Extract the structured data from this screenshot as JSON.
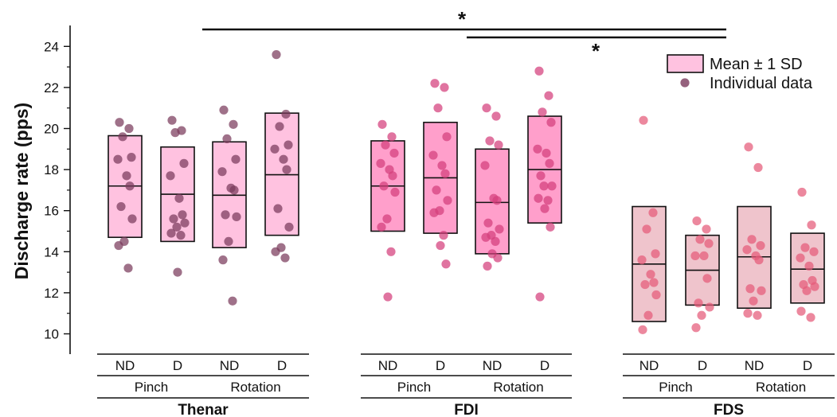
{
  "chart_data": {
    "type": "box",
    "ylabel": "Discharge rate (pps)",
    "ylim": [
      9.2,
      25.2
    ],
    "yticks": [
      10,
      12,
      14,
      16,
      18,
      20,
      22,
      24
    ],
    "legend": {
      "placement": "top-right",
      "items": [
        {
          "label": "Mean ± 1 SD",
          "kind": "box"
        },
        {
          "label": "Individual data",
          "kind": "point"
        }
      ]
    },
    "colors": {
      "Thenar": {
        "box": "#ffc2e0",
        "dot": "#7a3a5c"
      },
      "FDI": {
        "box": "#ff9fcb",
        "dot": "#d43f7c"
      },
      "FDS": {
        "box": "#efc4cc",
        "dot": "#e45a78"
      }
    },
    "muscles": [
      {
        "name": "Thenar",
        "tasks": [
          "Pinch",
          "Rotation"
        ],
        "conditions": [
          {
            "hand": "ND",
            "task": "Pinch",
            "mean": 17.2,
            "sd_low": 14.7,
            "sd_high": 19.65,
            "points": [
              20.3,
              20.0,
              19.6,
              18.6,
              18.5,
              17.7,
              17.2,
              16.2,
              15.6,
              14.5,
              14.3,
              13.2
            ]
          },
          {
            "hand": "D",
            "task": "Pinch",
            "mean": 16.8,
            "sd_low": 14.5,
            "sd_high": 19.1,
            "points": [
              20.4,
              19.9,
              19.8,
              18.3,
              17.7,
              16.6,
              15.8,
              15.6,
              15.4,
              15.2,
              14.9,
              14.8,
              13.0
            ]
          },
          {
            "hand": "ND",
            "task": "Rotation",
            "mean": 16.75,
            "sd_low": 14.2,
            "sd_high": 19.35,
            "points": [
              20.9,
              20.2,
              19.5,
              18.5,
              17.9,
              17.1,
              17.0,
              15.8,
              15.7,
              14.5,
              13.6,
              11.6
            ]
          },
          {
            "hand": "D",
            "task": "Rotation",
            "mean": 17.75,
            "sd_low": 14.8,
            "sd_high": 20.75,
            "points": [
              23.6,
              20.7,
              20.1,
              19.2,
              19.0,
              18.5,
              18.0,
              16.1,
              15.2,
              14.2,
              14.0,
              13.7
            ]
          }
        ]
      },
      {
        "name": "FDI",
        "tasks": [
          "Pinch",
          "Rotation"
        ],
        "conditions": [
          {
            "hand": "ND",
            "task": "Pinch",
            "mean": 17.2,
            "sd_low": 15.0,
            "sd_high": 19.4,
            "points": [
              20.2,
              19.6,
              19.2,
              18.8,
              18.3,
              18.0,
              17.7,
              17.2,
              16.9,
              15.6,
              15.2,
              14.0,
              11.8
            ]
          },
          {
            "hand": "D",
            "task": "Pinch",
            "mean": 17.6,
            "sd_low": 14.9,
            "sd_high": 20.3,
            "points": [
              22.2,
              22.0,
              21.0,
              19.6,
              18.7,
              18.2,
              17.8,
              17.0,
              16.5,
              16.0,
              15.9,
              14.8,
              14.3,
              13.4
            ]
          },
          {
            "hand": "ND",
            "task": "Rotation",
            "mean": 16.4,
            "sd_low": 13.9,
            "sd_high": 19.0,
            "points": [
              21.0,
              20.6,
              19.4,
              19.2,
              18.2,
              16.6,
              16.5,
              15.4,
              15.1,
              14.8,
              14.7,
              14.5,
              13.9,
              13.7,
              13.3
            ]
          },
          {
            "hand": "D",
            "task": "Rotation",
            "mean": 18.0,
            "sd_low": 15.4,
            "sd_high": 20.6,
            "points": [
              22.8,
              21.6,
              20.8,
              20.3,
              19.0,
              18.8,
              18.3,
              17.7,
              17.2,
              17.2,
              16.6,
              16.5,
              16.1,
              15.2,
              11.8
            ]
          }
        ]
      },
      {
        "name": "FDS",
        "tasks": [
          "Pinch",
          "Rotation"
        ],
        "conditions": [
          {
            "hand": "ND",
            "task": "Pinch",
            "mean": 13.4,
            "sd_low": 10.6,
            "sd_high": 16.2,
            "points": [
              20.4,
              15.9,
              15.1,
              13.9,
              13.6,
              12.9,
              12.5,
              12.4,
              11.9,
              10.9,
              10.2
            ]
          },
          {
            "hand": "D",
            "task": "Pinch",
            "mean": 13.1,
            "sd_low": 11.4,
            "sd_high": 14.8,
            "points": [
              15.5,
              15.1,
              14.6,
              14.4,
              13.8,
              13.8,
              12.7,
              11.5,
              11.3,
              10.9,
              10.3
            ]
          },
          {
            "hand": "ND",
            "task": "Rotation",
            "mean": 13.75,
            "sd_low": 11.25,
            "sd_high": 16.2,
            "points": [
              19.1,
              18.1,
              14.6,
              14.3,
              14.1,
              13.8,
              13.6,
              12.2,
              12.1,
              11.6,
              11.0,
              10.9
            ]
          },
          {
            "hand": "D",
            "task": "Rotation",
            "mean": 13.15,
            "sd_low": 11.5,
            "sd_high": 14.9,
            "points": [
              16.9,
              15.3,
              14.2,
              14.0,
              13.7,
              13.3,
              12.6,
              12.4,
              12.3,
              12.1,
              11.1,
              10.8
            ]
          }
        ]
      }
    ],
    "significance": [
      {
        "from": "Thenar",
        "to": "FDS",
        "label": "*"
      },
      {
        "from": "FDI",
        "to": "FDS",
        "label": "*"
      }
    ]
  }
}
